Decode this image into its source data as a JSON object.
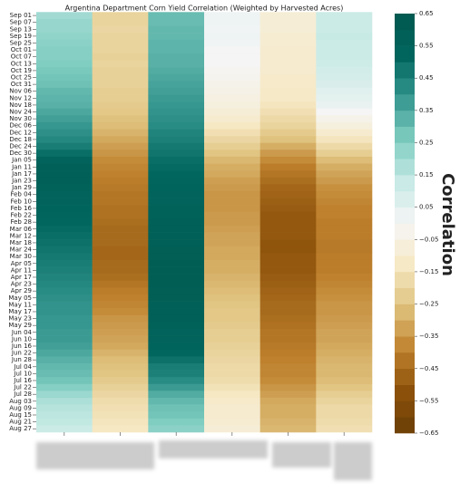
{
  "chart_data": {
    "type": "heatmap",
    "title": "Argentina Department Corn Yield Correlation (Weighted by Harvested Acres)",
    "colorbar_label": "Correlation",
    "y_categories": [
      "Sep 01",
      "Sep 07",
      "Sep 13",
      "Sep 19",
      "Sep 25",
      "Oct 01",
      "Oct 07",
      "Oct 13",
      "Oct 19",
      "Oct 25",
      "Oct 31",
      "Nov 06",
      "Nov 12",
      "Nov 18",
      "Nov 24",
      "Nov 30",
      "Dec 06",
      "Dec 12",
      "Dec 18",
      "Dec 24",
      "Dec 30",
      "Jan 05",
      "Jan 11",
      "Jan 17",
      "Jan 23",
      "Jan 29",
      "Feb 04",
      "Feb 10",
      "Feb 16",
      "Feb 22",
      "Feb 28",
      "Mar 06",
      "Mar 12",
      "Mar 18",
      "Mar 24",
      "Mar 30",
      "Apr 05",
      "Apr 11",
      "Apr 17",
      "Apr 23",
      "Apr 29",
      "May 05",
      "May 11",
      "May 17",
      "May 23",
      "May 29",
      "Jun 04",
      "Jun 10",
      "Jun 16",
      "Jun 22",
      "Jun 28",
      "Jul 04",
      "Jul 10",
      "Jul 16",
      "Jul 22",
      "Jul 28",
      "Aug 03",
      "Aug 09",
      "Aug 15",
      "Aug 21",
      "Aug 27"
    ],
    "x_categories": [
      null,
      null,
      null,
      null,
      null,
      null
    ],
    "values": [
      [
        0.2,
        -0.2,
        0.3,
        0.02,
        -0.08,
        0.12
      ],
      [
        0.22,
        -0.2,
        0.3,
        0.02,
        -0.08,
        0.12
      ],
      [
        0.22,
        -0.19,
        0.31,
        0.01,
        -0.08,
        0.12
      ],
      [
        0.23,
        -0.2,
        0.31,
        0.02,
        -0.09,
        0.13
      ],
      [
        0.24,
        -0.2,
        0.32,
        0.01,
        -0.09,
        0.12
      ],
      [
        0.25,
        -0.2,
        0.32,
        0.0,
        -0.1,
        0.12
      ],
      [
        0.25,
        -0.21,
        0.33,
        0.0,
        -0.1,
        0.12
      ],
      [
        0.26,
        -0.2,
        0.33,
        0.0,
        -0.1,
        0.11
      ],
      [
        0.27,
        -0.21,
        0.34,
        -0.01,
        -0.1,
        0.1
      ],
      [
        0.28,
        -0.21,
        0.35,
        -0.02,
        -0.11,
        0.09
      ],
      [
        0.29,
        -0.21,
        0.36,
        -0.03,
        -0.11,
        0.08
      ],
      [
        0.31,
        -0.22,
        0.37,
        -0.04,
        -0.12,
        0.06
      ],
      [
        0.32,
        -0.22,
        0.38,
        -0.05,
        -0.12,
        0.05
      ],
      [
        0.33,
        -0.23,
        0.39,
        -0.06,
        -0.14,
        0.03
      ],
      [
        0.35,
        -0.24,
        0.4,
        -0.08,
        -0.16,
        0.0
      ],
      [
        0.37,
        -0.26,
        0.41,
        -0.1,
        -0.18,
        -0.03
      ],
      [
        0.39,
        -0.27,
        0.42,
        -0.13,
        -0.2,
        -0.06
      ],
      [
        0.41,
        -0.29,
        0.44,
        -0.16,
        -0.23,
        -0.1
      ],
      [
        0.43,
        -0.31,
        0.45,
        -0.19,
        -0.26,
        -0.14
      ],
      [
        0.46,
        -0.33,
        0.47,
        -0.22,
        -0.3,
        -0.18
      ],
      [
        0.5,
        -0.35,
        0.48,
        -0.25,
        -0.34,
        -0.22
      ],
      [
        0.55,
        -0.37,
        0.5,
        -0.28,
        -0.37,
        -0.27
      ],
      [
        0.58,
        -0.38,
        0.51,
        -0.3,
        -0.4,
        -0.3
      ],
      [
        0.58,
        -0.39,
        0.52,
        -0.31,
        -0.42,
        -0.32
      ],
      [
        0.57,
        -0.4,
        0.53,
        -0.33,
        -0.44,
        -0.34
      ],
      [
        0.56,
        -0.41,
        0.54,
        -0.34,
        -0.46,
        -0.36
      ],
      [
        0.55,
        -0.42,
        0.55,
        -0.35,
        -0.47,
        -0.37
      ],
      [
        0.55,
        -0.42,
        0.55,
        -0.35,
        -0.48,
        -0.38
      ],
      [
        0.54,
        -0.43,
        0.56,
        -0.35,
        -0.49,
        -0.39
      ],
      [
        0.53,
        -0.43,
        0.56,
        -0.34,
        -0.5,
        -0.39
      ],
      [
        0.52,
        -0.44,
        0.57,
        -0.34,
        -0.5,
        -0.4
      ],
      [
        0.51,
        -0.45,
        0.57,
        -0.33,
        -0.5,
        -0.4
      ],
      [
        0.5,
        -0.45,
        0.58,
        -0.32,
        -0.5,
        -0.4
      ],
      [
        0.49,
        -0.45,
        0.58,
        -0.32,
        -0.51,
        -0.41
      ],
      [
        0.48,
        -0.46,
        0.59,
        -0.31,
        -0.51,
        -0.41
      ],
      [
        0.47,
        -0.46,
        0.59,
        -0.31,
        -0.5,
        -0.4
      ],
      [
        0.46,
        -0.45,
        0.6,
        -0.3,
        -0.5,
        -0.4
      ],
      [
        0.45,
        -0.45,
        0.6,
        -0.3,
        -0.5,
        -0.4
      ],
      [
        0.44,
        -0.44,
        0.6,
        -0.29,
        -0.49,
        -0.39
      ],
      [
        0.43,
        -0.42,
        0.6,
        -0.28,
        -0.48,
        -0.38
      ],
      [
        0.42,
        -0.4,
        0.59,
        -0.27,
        -0.47,
        -0.37
      ],
      [
        0.41,
        -0.39,
        0.59,
        -0.26,
        -0.46,
        -0.36
      ],
      [
        0.4,
        -0.38,
        0.58,
        -0.25,
        -0.45,
        -0.35
      ],
      [
        0.4,
        -0.37,
        0.58,
        -0.24,
        -0.45,
        -0.35
      ],
      [
        0.39,
        -0.35,
        0.57,
        -0.24,
        -0.44,
        -0.34
      ],
      [
        0.39,
        -0.34,
        0.56,
        -0.23,
        -0.43,
        -0.33
      ],
      [
        0.38,
        -0.33,
        0.55,
        -0.22,
        -0.42,
        -0.32
      ],
      [
        0.38,
        -0.32,
        0.55,
        -0.22,
        -0.42,
        -0.32
      ],
      [
        0.37,
        -0.31,
        0.54,
        -0.21,
        -0.41,
        -0.31
      ],
      [
        0.35,
        -0.29,
        0.52,
        -0.2,
        -0.4,
        -0.3
      ],
      [
        0.33,
        -0.27,
        0.49,
        -0.19,
        -0.39,
        -0.29
      ],
      [
        0.31,
        -0.26,
        0.46,
        -0.18,
        -0.38,
        -0.28
      ],
      [
        0.3,
        -0.25,
        0.45,
        -0.18,
        -0.38,
        -0.28
      ],
      [
        0.28,
        -0.23,
        0.42,
        -0.17,
        -0.37,
        -0.27
      ],
      [
        0.25,
        -0.21,
        0.38,
        -0.15,
        -0.35,
        -0.25
      ],
      [
        0.21,
        -0.19,
        0.34,
        -0.13,
        -0.33,
        -0.22
      ],
      [
        0.18,
        -0.17,
        0.31,
        -0.11,
        -0.31,
        -0.2
      ],
      [
        0.16,
        -0.16,
        0.29,
        -0.1,
        -0.3,
        -0.18
      ],
      [
        0.15,
        -0.15,
        0.28,
        -0.1,
        -0.3,
        -0.18
      ],
      [
        0.14,
        -0.14,
        0.26,
        -0.09,
        -0.29,
        -0.17
      ],
      [
        0.12,
        -0.13,
        0.24,
        -0.08,
        -0.28,
        -0.16
      ]
    ],
    "clim": [
      -0.65,
      0.65
    ],
    "colorbar_ticks": [
      0.65,
      0.55,
      0.45,
      0.35,
      0.25,
      0.15,
      0.05,
      {
        "value": -0.05,
        "label": "−0.05"
      },
      {
        "value": -0.15,
        "label": "−0.15"
      },
      {
        "value": -0.25,
        "label": "−0.25"
      },
      {
        "value": -0.35,
        "label": "−0.35"
      },
      {
        "value": -0.45,
        "label": "−0.45"
      },
      {
        "value": -0.55,
        "label": "−0.55"
      },
      {
        "value": -0.65,
        "label": "−0.65"
      }
    ],
    "colormap": [
      "#6b3e07",
      "#8c510a",
      "#bf812d",
      "#dfc27d",
      "#f6e8c3",
      "#f5f5f5",
      "#c7eae5",
      "#80cdc1",
      "#35978f",
      "#01665e",
      "#01594f"
    ]
  }
}
